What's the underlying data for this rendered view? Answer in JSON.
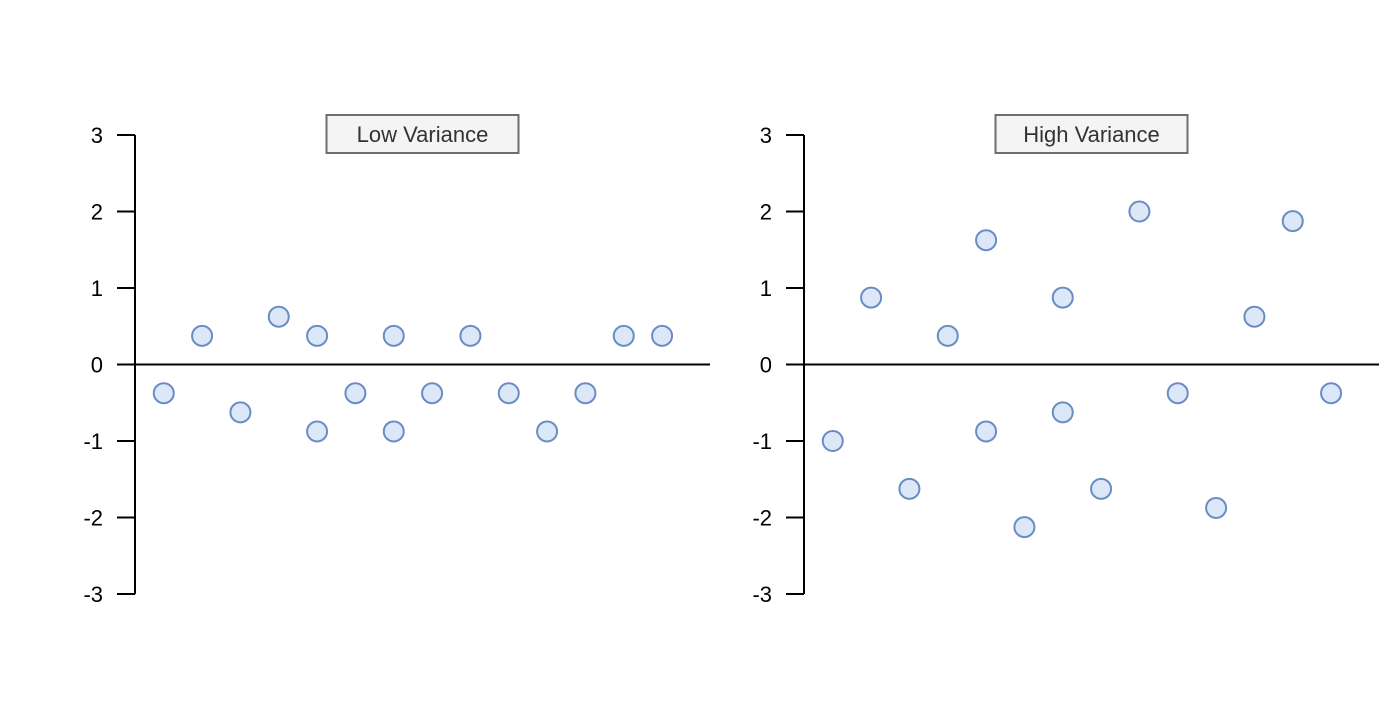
{
  "colors": {
    "point_fill": "#dce8f8",
    "point_stroke": "#6a8cc4",
    "axis": "#000000"
  },
  "chart_data": [
    {
      "type": "scatter",
      "title": "Low Variance",
      "xlabel": "",
      "ylabel": "",
      "ylim": [
        -3,
        3
      ],
      "xlim": [
        0,
        15
      ],
      "yticks": [
        3,
        2,
        1,
        0,
        -1,
        -2,
        -3
      ],
      "grid": false,
      "points": [
        {
          "x": 0.75,
          "y": -0.375
        },
        {
          "x": 1.75,
          "y": 0.375
        },
        {
          "x": 2.75,
          "y": -0.625
        },
        {
          "x": 3.75,
          "y": 0.625
        },
        {
          "x": 4.75,
          "y": 0.375
        },
        {
          "x": 4.75,
          "y": -0.875
        },
        {
          "x": 5.75,
          "y": -0.375
        },
        {
          "x": 6.75,
          "y": 0.375
        },
        {
          "x": 6.75,
          "y": -0.875
        },
        {
          "x": 7.75,
          "y": -0.375
        },
        {
          "x": 8.75,
          "y": 0.375
        },
        {
          "x": 9.75,
          "y": -0.375
        },
        {
          "x": 10.75,
          "y": -0.875
        },
        {
          "x": 11.75,
          "y": -0.375
        },
        {
          "x": 12.75,
          "y": 0.375
        },
        {
          "x": 13.75,
          "y": 0.375
        }
      ]
    },
    {
      "type": "scatter",
      "title": "High Variance",
      "xlabel": "",
      "ylabel": "",
      "ylim": [
        -3,
        3
      ],
      "xlim": [
        0,
        15
      ],
      "yticks": [
        3,
        2,
        1,
        0,
        -1,
        -2,
        -3
      ],
      "grid": false,
      "points": [
        {
          "x": 0.75,
          "y": -1.0
        },
        {
          "x": 1.75,
          "y": 0.875
        },
        {
          "x": 2.75,
          "y": -1.625
        },
        {
          "x": 3.75,
          "y": 0.375
        },
        {
          "x": 4.75,
          "y": 1.625
        },
        {
          "x": 4.75,
          "y": -0.875
        },
        {
          "x": 5.75,
          "y": -2.125
        },
        {
          "x": 6.75,
          "y": 0.875
        },
        {
          "x": 6.75,
          "y": -0.625
        },
        {
          "x": 7.75,
          "y": -1.625
        },
        {
          "x": 8.75,
          "y": 2.0
        },
        {
          "x": 9.75,
          "y": -0.375
        },
        {
          "x": 10.75,
          "y": -1.875
        },
        {
          "x": 11.75,
          "y": 0.625
        },
        {
          "x": 12.75,
          "y": 1.875
        },
        {
          "x": 13.75,
          "y": -0.375
        }
      ]
    }
  ]
}
